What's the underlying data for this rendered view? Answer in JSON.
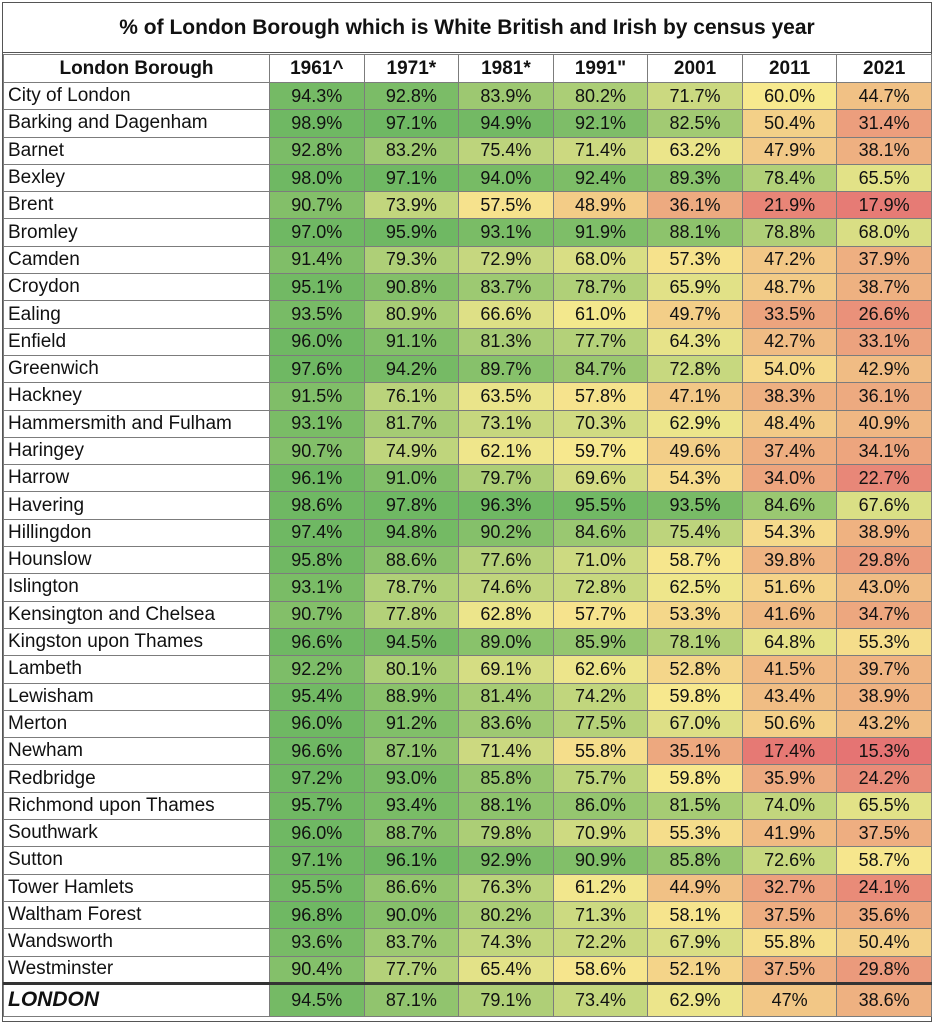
{
  "chart_data": {
    "type": "table",
    "title": "% of London Borough which is White British and Irish by census year",
    "row_header": "London Borough",
    "columns": [
      "1961^",
      "1971*",
      "1981*",
      "1991\"",
      "2001",
      "2011",
      "2021"
    ],
    "rows": [
      {
        "name": "City of London",
        "values": [
          "94.3%",
          "92.8%",
          "83.9%",
          "80.2%",
          "71.7%",
          "60.0%",
          "44.7%"
        ]
      },
      {
        "name": "Barking and Dagenham",
        "values": [
          "98.9%",
          "97.1%",
          "94.9%",
          "92.1%",
          "82.5%",
          "50.4%",
          "31.4%"
        ]
      },
      {
        "name": "Barnet",
        "values": [
          "92.8%",
          "83.2%",
          "75.4%",
          "71.4%",
          "63.2%",
          "47.9%",
          "38.1%"
        ]
      },
      {
        "name": "Bexley",
        "values": [
          "98.0%",
          "97.1%",
          "94.0%",
          "92.4%",
          "89.3%",
          "78.4%",
          "65.5%"
        ]
      },
      {
        "name": "Brent",
        "values": [
          "90.7%",
          "73.9%",
          "57.5%",
          "48.9%",
          "36.1%",
          "21.9%",
          "17.9%"
        ]
      },
      {
        "name": "Bromley",
        "values": [
          "97.0%",
          "95.9%",
          "93.1%",
          "91.9%",
          "88.1%",
          "78.8%",
          "68.0%"
        ]
      },
      {
        "name": "Camden",
        "values": [
          "91.4%",
          "79.3%",
          "72.9%",
          "68.0%",
          "57.3%",
          "47.2%",
          "37.9%"
        ]
      },
      {
        "name": "Croydon",
        "values": [
          "95.1%",
          "90.8%",
          "83.7%",
          "78.7%",
          "65.9%",
          "48.7%",
          "38.7%"
        ]
      },
      {
        "name": "Ealing",
        "values": [
          "93.5%",
          "80.9%",
          "66.6%",
          "61.0%",
          "49.7%",
          "33.5%",
          "26.6%"
        ]
      },
      {
        "name": "Enfield",
        "values": [
          "96.0%",
          "91.1%",
          "81.3%",
          "77.7%",
          "64.3%",
          "42.7%",
          "33.1%"
        ]
      },
      {
        "name": "Greenwich",
        "values": [
          "97.6%",
          "94.2%",
          "89.7%",
          "84.7%",
          "72.8%",
          "54.0%",
          "42.9%"
        ]
      },
      {
        "name": "Hackney",
        "values": [
          "91.5%",
          "76.1%",
          "63.5%",
          "57.8%",
          "47.1%",
          "38.3%",
          "36.1%"
        ]
      },
      {
        "name": "Hammersmith and Fulham",
        "values": [
          "93.1%",
          "81.7%",
          "73.1%",
          "70.3%",
          "62.9%",
          "48.4%",
          "40.9%"
        ]
      },
      {
        "name": "Haringey",
        "values": [
          "90.7%",
          "74.9%",
          "62.1%",
          "59.7%",
          "49.6%",
          "37.4%",
          "34.1%"
        ]
      },
      {
        "name": "Harrow",
        "values": [
          "96.1%",
          "91.0%",
          "79.7%",
          "69.6%",
          "54.3%",
          "34.0%",
          "22.7%"
        ]
      },
      {
        "name": "Havering",
        "values": [
          "98.6%",
          "97.8%",
          "96.3%",
          "95.5%",
          "93.5%",
          "84.6%",
          "67.6%"
        ]
      },
      {
        "name": "Hillingdon",
        "values": [
          "97.4%",
          "94.8%",
          "90.2%",
          "84.6%",
          "75.4%",
          "54.3%",
          "38.9%"
        ]
      },
      {
        "name": "Hounslow",
        "values": [
          "95.8%",
          "88.6%",
          "77.6%",
          "71.0%",
          "58.7%",
          "39.8%",
          "29.8%"
        ]
      },
      {
        "name": "Islington",
        "values": [
          "93.1%",
          "78.7%",
          "74.6%",
          "72.8%",
          "62.5%",
          "51.6%",
          "43.0%"
        ]
      },
      {
        "name": "Kensington and Chelsea",
        "values": [
          "90.7%",
          "77.8%",
          "62.8%",
          "57.7%",
          "53.3%",
          "41.6%",
          "34.7%"
        ]
      },
      {
        "name": "Kingston upon Thames",
        "values": [
          "96.6%",
          "94.5%",
          "89.0%",
          "85.9%",
          "78.1%",
          "64.8%",
          "55.3%"
        ]
      },
      {
        "name": "Lambeth",
        "values": [
          "92.2%",
          "80.1%",
          "69.1%",
          "62.6%",
          "52.8%",
          "41.5%",
          "39.7%"
        ]
      },
      {
        "name": "Lewisham",
        "values": [
          "95.4%",
          "88.9%",
          "81.4%",
          "74.2%",
          "59.8%",
          "43.4%",
          "38.9%"
        ]
      },
      {
        "name": "Merton",
        "values": [
          "96.0%",
          "91.2%",
          "83.6%",
          "77.5%",
          "67.0%",
          "50.6%",
          "43.2%"
        ]
      },
      {
        "name": "Newham",
        "values": [
          "96.6%",
          "87.1%",
          "71.4%",
          "55.8%",
          "35.1%",
          "17.4%",
          "15.3%"
        ]
      },
      {
        "name": "Redbridge",
        "values": [
          "97.2%",
          "93.0%",
          "85.8%",
          "75.7%",
          "59.8%",
          "35.9%",
          "24.2%"
        ]
      },
      {
        "name": "Richmond upon Thames",
        "values": [
          "95.7%",
          "93.4%",
          "88.1%",
          "86.0%",
          "81.5%",
          "74.0%",
          "65.5%"
        ]
      },
      {
        "name": "Southwark",
        "values": [
          "96.0%",
          "88.7%",
          "79.8%",
          "70.9%",
          "55.3%",
          "41.9%",
          "37.5%"
        ]
      },
      {
        "name": "Sutton",
        "values": [
          "97.1%",
          "96.1%",
          "92.9%",
          "90.9%",
          "85.8%",
          "72.6%",
          "58.7%"
        ]
      },
      {
        "name": "Tower Hamlets",
        "values": [
          "95.5%",
          "86.6%",
          "76.3%",
          "61.2%",
          "44.9%",
          "32.7%",
          "24.1%"
        ]
      },
      {
        "name": "Waltham Forest",
        "values": [
          "96.8%",
          "90.0%",
          "80.2%",
          "71.3%",
          "58.1%",
          "37.5%",
          "35.6%"
        ]
      },
      {
        "name": "Wandsworth",
        "values": [
          "93.6%",
          "83.7%",
          "74.3%",
          "72.2%",
          "67.9%",
          "55.8%",
          "50.4%"
        ]
      },
      {
        "name": "Westminster",
        "values": [
          "90.4%",
          "77.7%",
          "65.4%",
          "58.6%",
          "52.1%",
          "37.5%",
          "29.8%"
        ]
      }
    ],
    "total": {
      "name": "LONDON",
      "values": [
        "94.5%",
        "87.1%",
        "79.1%",
        "73.4%",
        "62.9%",
        "47%",
        "38.6%"
      ]
    },
    "color_scale": {
      "low": "#e57373",
      "mid": "#f7e98e",
      "high": "#6fb863"
    }
  }
}
